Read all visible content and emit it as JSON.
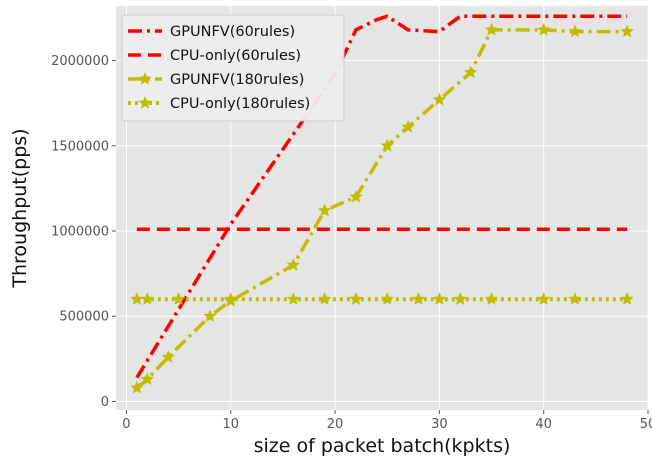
{
  "chart_data": {
    "type": "line",
    "xlabel": "size of packet batch(kpkts)",
    "ylabel": "Throughput(pps)",
    "xlim": [
      -1,
      50
    ],
    "ylim": [
      -50000,
      2320000
    ],
    "x_ticks": [
      0,
      10,
      20,
      30,
      40,
      50
    ],
    "y_ticks": [
      0,
      500000,
      1000000,
      1500000,
      2000000
    ],
    "x_tick_labels": [
      "0",
      "10",
      "20",
      "30",
      "40",
      "50"
    ],
    "y_tick_labels": [
      "0",
      "500000",
      "1000000",
      "1500000",
      "2000000"
    ],
    "grid": true,
    "legend_position": "top-left",
    "series": [
      {
        "name": "GPUNFV(60rules)",
        "color": "#ff0000",
        "line_style": "dash-dot",
        "marker": "none",
        "points": [
          [
            1,
            140000
          ],
          [
            10,
            1040000
          ],
          [
            20,
            1920000
          ],
          [
            22,
            2180000
          ],
          [
            24,
            2240000
          ],
          [
            25,
            2260000
          ],
          [
            27,
            2180000
          ],
          [
            30,
            2170000
          ],
          [
            32,
            2260000
          ],
          [
            48,
            2260000
          ]
        ]
      },
      {
        "name": "CPU-only(60rules)",
        "color": "#ff0000",
        "line_style": "dashed",
        "marker": "none",
        "points": [
          [
            1,
            1010000
          ],
          [
            48,
            1010000
          ]
        ]
      },
      {
        "name": "GPUNFV(180rules)",
        "color": "#bfbf00",
        "line_style": "dash-dot",
        "marker": "star",
        "points": [
          [
            1,
            80000
          ],
          [
            2,
            130000
          ],
          [
            4,
            260000
          ],
          [
            8,
            500000
          ],
          [
            10,
            590000
          ],
          [
            16,
            800000
          ],
          [
            19,
            1120000
          ],
          [
            22,
            1200000
          ],
          [
            25,
            1500000
          ],
          [
            27,
            1610000
          ],
          [
            30,
            1770000
          ],
          [
            33,
            1930000
          ],
          [
            35,
            2180000
          ],
          [
            40,
            2180000
          ],
          [
            43,
            2170000
          ],
          [
            48,
            2170000
          ]
        ]
      },
      {
        "name": "CPU-only(180rules)",
        "color": "#bfbf00",
        "line_style": "dotted",
        "marker": "star",
        "points": [
          [
            1,
            600000
          ],
          [
            2,
            600000
          ],
          [
            5,
            600000
          ],
          [
            10,
            600000
          ],
          [
            16,
            600000
          ],
          [
            19,
            600000
          ],
          [
            22,
            600000
          ],
          [
            25,
            600000
          ],
          [
            28,
            600000
          ],
          [
            30,
            600000
          ],
          [
            32,
            600000
          ],
          [
            35,
            600000
          ],
          [
            40,
            600000
          ],
          [
            43,
            600000
          ],
          [
            48,
            600000
          ]
        ]
      }
    ]
  }
}
